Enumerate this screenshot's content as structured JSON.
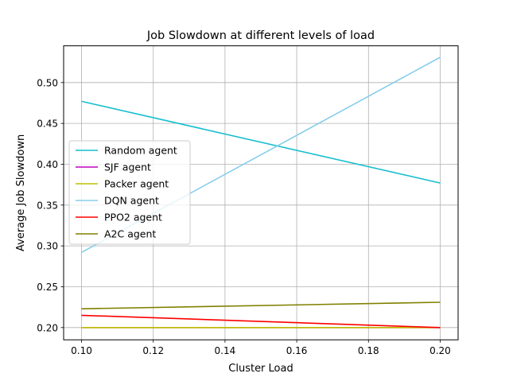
{
  "chart_data": {
    "type": "line",
    "title": "Job Slowdown at different levels of load",
    "xlabel": "Cluster Load",
    "ylabel": "Average Job Slowdown",
    "xlim": [
      0.095,
      0.205
    ],
    "ylim": [
      0.185,
      0.545
    ],
    "x_ticks": [
      "0.10",
      "0.12",
      "0.14",
      "0.16",
      "0.18",
      "0.20"
    ],
    "y_ticks": [
      "0.20",
      "0.25",
      "0.30",
      "0.35",
      "0.40",
      "0.45",
      "0.50"
    ],
    "x_tick_values": [
      0.1,
      0.12,
      0.14,
      0.16,
      0.18,
      0.2
    ],
    "y_tick_values": [
      0.2,
      0.25,
      0.3,
      0.35,
      0.4,
      0.45,
      0.5
    ],
    "grid": true,
    "legend_position": "center-left",
    "x": [
      0.1,
      0.2
    ],
    "series": [
      {
        "name": "Random agent",
        "color": "#17becf",
        "values": [
          0.477,
          0.377
        ]
      },
      {
        "name": "SJF agent",
        "color": "#bf00bf",
        "values": [
          0.2,
          0.2
        ]
      },
      {
        "name": "Packer agent",
        "color": "#bfbf00",
        "values": [
          0.2,
          0.2
        ]
      },
      {
        "name": "DQN agent",
        "color": "#87ceeb",
        "values": [
          0.292,
          0.531
        ]
      },
      {
        "name": "PPO2 agent",
        "color": "#ff0000",
        "values": [
          0.215,
          0.2
        ]
      },
      {
        "name": "A2C agent",
        "color": "#808000",
        "values": [
          0.223,
          0.231
        ]
      }
    ]
  }
}
